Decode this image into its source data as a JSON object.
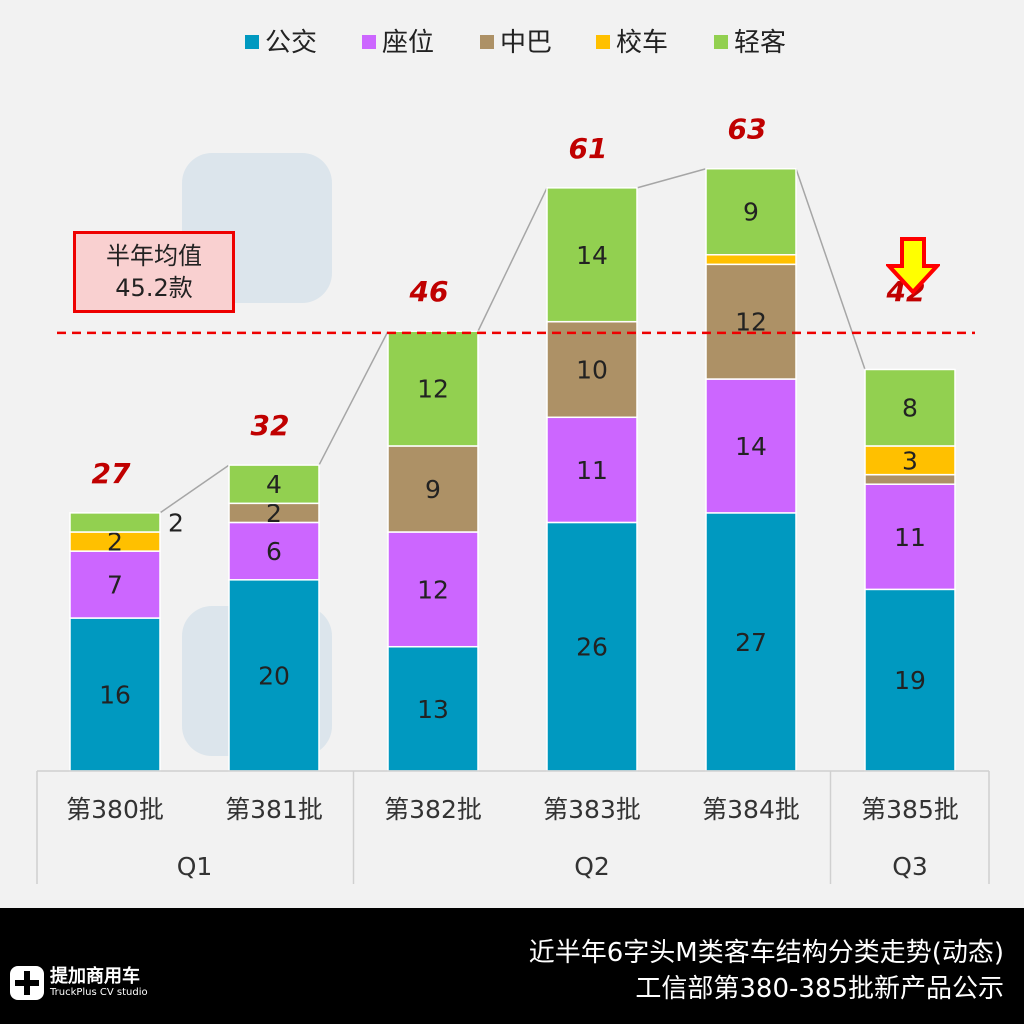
{
  "chart_data": {
    "type": "bar",
    "stacked": true,
    "categories": [
      "第380批",
      "第381批",
      "第382批",
      "第383批",
      "第384批",
      "第385批"
    ],
    "groups": [
      {
        "label": "Q1",
        "count": 2
      },
      {
        "label": "Q2",
        "count": 3
      },
      {
        "label": "Q3",
        "count": 1
      }
    ],
    "series": [
      {
        "name": "公交",
        "color": "#0099c0",
        "values": [
          16,
          20,
          13,
          26,
          27,
          19
        ]
      },
      {
        "name": "座位",
        "color": "#cc66ff",
        "values": [
          7,
          6,
          12,
          11,
          14,
          11
        ]
      },
      {
        "name": "中巴",
        "color": "#ad9166",
        "values": [
          0,
          2,
          9,
          10,
          12,
          1
        ]
      },
      {
        "name": "校车",
        "color": "#ffc000",
        "values": [
          2,
          0,
          0,
          0,
          1,
          3
        ]
      },
      {
        "name": "轻客",
        "color": "#92d050",
        "values": [
          2,
          4,
          12,
          14,
          9,
          8
        ]
      }
    ],
    "totals": [
      27,
      32,
      46,
      61,
      63,
      42
    ],
    "average": {
      "value": 45.2,
      "label_line1": "半年均值",
      "label_line2": "45.2款"
    },
    "legend_position": "top",
    "ylim": [
      0,
      66
    ]
  },
  "watermark": {
    "cn": "提加商用车",
    "en": "TruckPlus CV studio"
  },
  "footer": {
    "title_line1": "近半年6字头M类客车结构分类走势(动态)",
    "title_line2": "工信部第380-385批新产品公示",
    "logo_cn": "提加商用车",
    "logo_en": "TruckPlus CV studio"
  }
}
